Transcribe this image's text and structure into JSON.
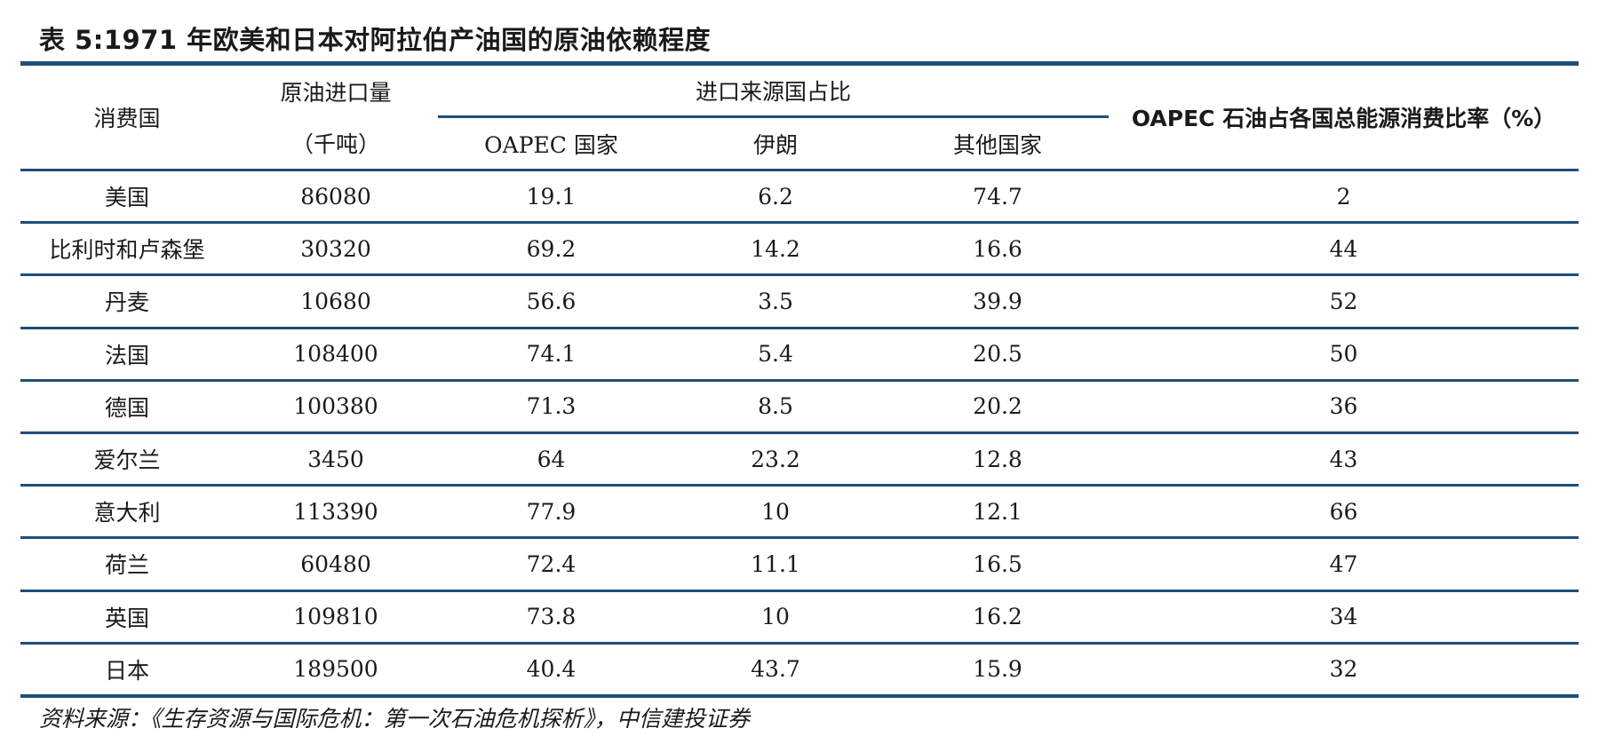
{
  "title": "表 5:1971 年欧美和日本对阿拉伯产油国的原油依赖程度",
  "headers": {
    "consumer": "消费国",
    "import_volume_line1": "原油进口量",
    "import_volume_line2": "（千吨）",
    "source_group": "进口来源国占比",
    "oapec_countries": "OAPEC 国家",
    "iran": "伊朗",
    "other_countries": "其他国家",
    "oapec_share": "OAPEC 石油占各国总能源消费比率（%）"
  },
  "rows": [
    {
      "country": "美国",
      "imports": "86080",
      "oapec": "19.1",
      "iran": "6.2",
      "other": "74.7",
      "share": "2"
    },
    {
      "country": "比利时和卢森堡",
      "imports": "30320",
      "oapec": "69.2",
      "iran": "14.2",
      "other": "16.6",
      "share": "44"
    },
    {
      "country": "丹麦",
      "imports": "10680",
      "oapec": "56.6",
      "iran": "3.5",
      "other": "39.9",
      "share": "52"
    },
    {
      "country": "法国",
      "imports": "108400",
      "oapec": "74.1",
      "iran": "5.4",
      "other": "20.5",
      "share": "50"
    },
    {
      "country": "德国",
      "imports": "100380",
      "oapec": "71.3",
      "iran": "8.5",
      "other": "20.2",
      "share": "36"
    },
    {
      "country": "爱尔兰",
      "imports": "3450",
      "oapec": "64",
      "iran": "23.2",
      "other": "12.8",
      "share": "43"
    },
    {
      "country": "意大利",
      "imports": "113390",
      "oapec": "77.9",
      "iran": "10",
      "other": "12.1",
      "share": "66"
    },
    {
      "country": "荷兰",
      "imports": "60480",
      "oapec": "72.4",
      "iran": "11.1",
      "other": "16.5",
      "share": "47"
    },
    {
      "country": "英国",
      "imports": "109810",
      "oapec": "73.8",
      "iran": "10",
      "other": "16.2",
      "share": "34"
    },
    {
      "country": "日本",
      "imports": "189500",
      "oapec": "40.4",
      "iran": "43.7",
      "other": "15.9",
      "share": "32"
    }
  ],
  "source_note": "资料来源：《生存资源与国际危机：第一次石油危机探析》，中信建投证券",
  "colors": {
    "rule": "#1f4e79",
    "text": "#1a1a1a"
  }
}
